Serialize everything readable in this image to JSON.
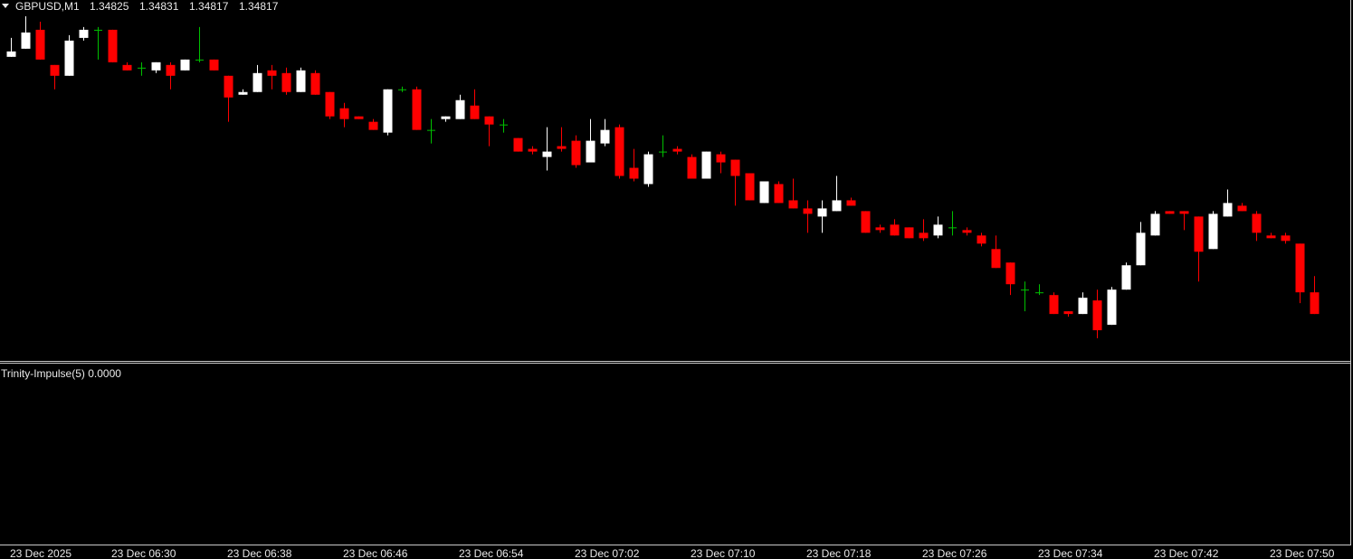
{
  "chart_data": {
    "type": "candlestick",
    "title": "GBPUSD,M1",
    "indicator": "Trinity-Impulse(5) 0.0000",
    "up_color": "#ffffff",
    "down_color": "#ff0000",
    "doji_color": "#00c000",
    "ylim": [
      1.348,
      1.34933
    ],
    "categories": [
      "23 Dec 2025",
      null,
      null,
      null,
      null,
      null,
      null,
      "23 Dec 06:30",
      null,
      null,
      null,
      null,
      null,
      null,
      null,
      "23 Dec 06:38",
      null,
      null,
      null,
      null,
      null,
      null,
      null,
      "23 Dec 06:46",
      null,
      null,
      null,
      null,
      null,
      null,
      null,
      "23 Dec 06:54",
      null,
      null,
      null,
      null,
      null,
      null,
      null,
      "23 Dec 07:02",
      null,
      null,
      null,
      null,
      null,
      null,
      null,
      "23 Dec 07:10",
      null,
      null,
      null,
      null,
      null,
      null,
      null,
      "23 Dec 07:18",
      null,
      null,
      null,
      null,
      null,
      null,
      null,
      "23 Dec 07:26",
      null,
      null,
      null,
      null,
      null,
      null,
      null,
      "23 Dec 07:34",
      null,
      null,
      null,
      null,
      null,
      null,
      null,
      "23 Dec 07:42",
      null,
      null,
      null,
      null,
      null,
      null,
      null,
      "23 Dec 07:50",
      null,
      null,
      null
    ],
    "ohlc": [
      [
        1.34912,
        1.34919,
        1.34912,
        1.34914
      ],
      [
        1.34915,
        1.34927,
        1.34915,
        1.34921
      ],
      [
        1.34922,
        1.34925,
        1.34911,
        1.34911
      ],
      [
        1.34909,
        1.34909,
        1.349,
        1.34905
      ],
      [
        1.34905,
        1.3492,
        1.34905,
        1.34918
      ],
      [
        1.34919,
        1.34923,
        1.34918,
        1.34922
      ],
      [
        1.34922,
        1.34923,
        1.34911,
        1.34922
      ],
      [
        1.34922,
        1.34922,
        1.3491,
        1.3491
      ],
      [
        1.34909,
        1.3491,
        1.34907,
        1.34907
      ],
      [
        1.34908,
        1.3491,
        1.34905,
        1.34908
      ],
      [
        1.34907,
        1.3491,
        1.34906,
        1.3491
      ],
      [
        1.34909,
        1.3491,
        1.349,
        1.34905
      ],
      [
        1.34907,
        1.34911,
        1.34907,
        1.34911
      ],
      [
        1.34911,
        1.34923,
        1.3491,
        1.34911
      ],
      [
        1.34911,
        1.34911,
        1.34907,
        1.34907
      ],
      [
        1.34905,
        1.34905,
        1.34888,
        1.34897
      ],
      [
        1.34898,
        1.349,
        1.34898,
        1.34899
      ],
      [
        1.34899,
        1.34909,
        1.34899,
        1.34906
      ],
      [
        1.34907,
        1.34909,
        1.349,
        1.34905
      ],
      [
        1.34906,
        1.34908,
        1.34898,
        1.34899
      ],
      [
        1.34899,
        1.34908,
        1.34899,
        1.34907
      ],
      [
        1.34906,
        1.34907,
        1.34898,
        1.34898
      ],
      [
        1.34899,
        1.34899,
        1.34889,
        1.3489
      ],
      [
        1.34893,
        1.34895,
        1.34886,
        1.34889
      ],
      [
        1.3489,
        1.3489,
        1.34889,
        1.34889
      ],
      [
        1.34888,
        1.34889,
        1.34885,
        1.34885
      ],
      [
        1.34884,
        1.349,
        1.34883,
        1.349
      ],
      [
        1.349,
        1.34901,
        1.34899,
        1.349
      ],
      [
        1.349,
        1.34901,
        1.34885,
        1.34885
      ],
      [
        1.34885,
        1.34889,
        1.3488,
        1.34885
      ],
      [
        1.34889,
        1.3489,
        1.34888,
        1.3489
      ],
      [
        1.34889,
        1.34898,
        1.34889,
        1.34896
      ],
      [
        1.34894,
        1.349,
        1.34889,
        1.34889
      ],
      [
        1.3489,
        1.3489,
        1.34879,
        1.34887
      ],
      [
        1.34887,
        1.34889,
        1.34884,
        1.34887
      ],
      [
        1.34882,
        1.34882,
        1.34877,
        1.34877
      ],
      [
        1.34878,
        1.34879,
        1.34876,
        1.34877
      ],
      [
        1.34875,
        1.34886,
        1.3487,
        1.34877
      ],
      [
        1.34879,
        1.34886,
        1.34877,
        1.34878
      ],
      [
        1.34881,
        1.34883,
        1.34871,
        1.34872
      ],
      [
        1.34873,
        1.34889,
        1.34873,
        1.34881
      ],
      [
        1.3488,
        1.34889,
        1.34879,
        1.34885
      ],
      [
        1.34886,
        1.34887,
        1.34867,
        1.34868
      ],
      [
        1.34871,
        1.34878,
        1.34866,
        1.34867
      ],
      [
        1.34865,
        1.34877,
        1.34864,
        1.34876
      ],
      [
        1.34877,
        1.34883,
        1.34875,
        1.34877
      ],
      [
        1.34878,
        1.34879,
        1.34876,
        1.34877
      ],
      [
        1.34875,
        1.34876,
        1.34867,
        1.34867
      ],
      [
        1.34867,
        1.34877,
        1.34867,
        1.34877
      ],
      [
        1.34876,
        1.34877,
        1.34869,
        1.34873
      ],
      [
        1.34874,
        1.34874,
        1.34857,
        1.34868
      ],
      [
        1.34869,
        1.34869,
        1.34859,
        1.34859
      ],
      [
        1.34858,
        1.34866,
        1.34858,
        1.34866
      ],
      [
        1.34865,
        1.34866,
        1.34858,
        1.34858
      ],
      [
        1.34859,
        1.34867,
        1.34856,
        1.34856
      ],
      [
        1.34856,
        1.34859,
        1.34847,
        1.34854
      ],
      [
        1.34853,
        1.34859,
        1.34847,
        1.34856
      ],
      [
        1.34855,
        1.34868,
        1.34855,
        1.34859
      ],
      [
        1.34859,
        1.3486,
        1.34857,
        1.34857
      ],
      [
        1.34855,
        1.34855,
        1.34847,
        1.34847
      ],
      [
        1.34849,
        1.3485,
        1.34847,
        1.34848
      ],
      [
        1.3485,
        1.34852,
        1.34846,
        1.34846
      ],
      [
        1.34849,
        1.34849,
        1.34845,
        1.34845
      ],
      [
        1.34847,
        1.34852,
        1.34844,
        1.34845
      ],
      [
        1.34846,
        1.34853,
        1.34845,
        1.3485
      ],
      [
        1.34849,
        1.34855,
        1.34846,
        1.34849
      ],
      [
        1.34848,
        1.34849,
        1.34846,
        1.34847
      ],
      [
        1.34846,
        1.34847,
        1.34842,
        1.34843
      ],
      [
        1.34841,
        1.34846,
        1.34834,
        1.34834
      ],
      [
        1.34836,
        1.34836,
        1.34824,
        1.34828
      ],
      [
        1.34826,
        1.34829,
        1.34818,
        1.34826
      ],
      [
        1.34825,
        1.34828,
        1.34824,
        1.34825
      ],
      [
        1.34824,
        1.34825,
        1.34817,
        1.34817
      ],
      [
        1.34818,
        1.34818,
        1.34816,
        1.34817
      ],
      [
        1.34817,
        1.34825,
        1.34817,
        1.34823
      ],
      [
        1.34822,
        1.34826,
        1.34808,
        1.34811
      ],
      [
        1.34813,
        1.34827,
        1.34813,
        1.34826
      ],
      [
        1.34826,
        1.34836,
        1.34826,
        1.34835
      ],
      [
        1.34835,
        1.34851,
        1.34835,
        1.34847
      ],
      [
        1.34846,
        1.34855,
        1.34846,
        1.34854
      ],
      [
        1.34855,
        1.34855,
        1.34854,
        1.34854
      ],
      [
        1.34855,
        1.34855,
        1.34848,
        1.34854
      ],
      [
        1.34853,
        1.34853,
        1.34829,
        1.3484
      ],
      [
        1.34841,
        1.34855,
        1.34841,
        1.34854
      ],
      [
        1.34853,
        1.34863,
        1.34853,
        1.34858
      ],
      [
        1.34857,
        1.34858,
        1.34855,
        1.34855
      ],
      [
        1.34854,
        1.34855,
        1.34844,
        1.34847
      ],
      [
        1.34846,
        1.34847,
        1.34845,
        1.34845
      ],
      [
        1.34846,
        1.34847,
        1.34843,
        1.34844
      ],
      [
        1.34843,
        1.34843,
        1.34821,
        1.34825
      ],
      [
        1.34825,
        1.34831,
        1.34817,
        1.34817
      ]
    ]
  }
}
